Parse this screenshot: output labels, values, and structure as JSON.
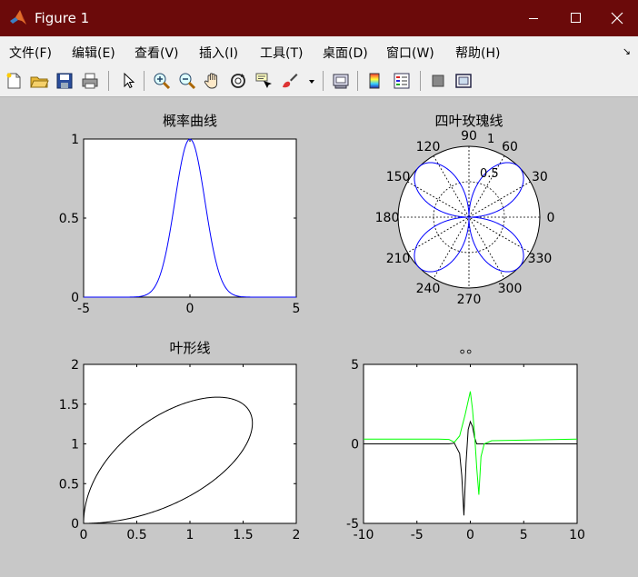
{
  "window": {
    "title": "Figure 1"
  },
  "menu": {
    "items": [
      "文件(F)",
      "编辑(E)",
      "查看(V)",
      "插入(I)",
      "工具(T)",
      "桌面(D)",
      "窗口(W)",
      "帮助(H)"
    ]
  },
  "toolbar": {
    "icons": [
      "new-file-icon",
      "open-folder-icon",
      "save-icon",
      "print-icon",
      "pointer-icon",
      "zoom-in-icon",
      "zoom-out-icon",
      "pan-hand-icon",
      "rotate-3d-icon",
      "data-cursor-icon",
      "brush-icon",
      "brush-dropdown-icon",
      "link-plot-icon",
      "colorbar-icon",
      "legend-icon",
      "hide-plot-tools-icon",
      "show-plot-tools-icon"
    ]
  },
  "chart_data": [
    {
      "type": "line",
      "title": "概率曲线",
      "xlim": [
        -5,
        5
      ],
      "ylim": [
        0,
        1
      ],
      "xticks": [
        "-5",
        "0",
        "5"
      ],
      "yticks": [
        "0",
        "0.5",
        "1"
      ],
      "series": [
        {
          "color": "#0000ff",
          "function": "exp(-x^2)",
          "x": [
            -5,
            -2,
            -1.5,
            -1,
            -0.5,
            0,
            0.5,
            1,
            1.5,
            2,
            5
          ],
          "y": [
            0,
            0.02,
            0.11,
            0.37,
            0.78,
            1.0,
            0.78,
            0.37,
            0.11,
            0.02,
            0
          ]
        }
      ]
    },
    {
      "type": "polar",
      "title": "四叶玫瑰线",
      "rlim": [
        0,
        1
      ],
      "rticks": [
        "0.5",
        "1"
      ],
      "angle_ticks": [
        "0",
        "30",
        "60",
        "90",
        "120",
        "150",
        "180",
        "210",
        "240",
        "270",
        "300",
        "330"
      ],
      "series": [
        {
          "color": "#0000ff",
          "function": "r = |sin(2θ)|"
        }
      ]
    },
    {
      "type": "line",
      "title": "叶形线",
      "xlim": [
        0,
        2
      ],
      "ylim": [
        0,
        2
      ],
      "xticks": [
        "0",
        "0.5",
        "1",
        "1.5",
        "2"
      ],
      "yticks": [
        "0",
        "0.5",
        "1",
        "1.5",
        "2"
      ],
      "series": [
        {
          "color": "#000000",
          "function": "folium: x = 3t/(1+t^3), y = 3t^2/(1+t^3)",
          "x": [
            0,
            0.59,
            1.21,
            1.5,
            1.26,
            0.75,
            0.37,
            0
          ],
          "y": [
            0,
            0.18,
            0.73,
            1.5,
            1.59,
            1.52,
            1.11,
            0
          ]
        }
      ]
    },
    {
      "type": "line",
      "title": "。。",
      "xlim": [
        -10,
        10
      ],
      "ylim": [
        -5,
        5
      ],
      "xticks": [
        "-10",
        "-5",
        "0",
        "5",
        "10"
      ],
      "yticks": [
        "-5",
        "0",
        "5"
      ],
      "series": [
        {
          "color": "#000000",
          "x": [
            -10,
            -2,
            -1.5,
            -1,
            -0.8,
            -0.6,
            -0.4,
            -0.2,
            0,
            0.2,
            0.4,
            0.6,
            0.8,
            1,
            2,
            10
          ],
          "y": [
            0,
            0,
            0.05,
            -0.6,
            -2.0,
            -4.5,
            -1.2,
            0.9,
            1.4,
            1.1,
            0.4,
            0.0,
            0,
            0,
            0,
            0
          ]
        },
        {
          "color": "#00ff00",
          "x": [
            -10,
            -3,
            -2,
            -1.5,
            -1,
            -0.5,
            0,
            0.2,
            0.4,
            0.6,
            0.8,
            1.0,
            1.3,
            2,
            10
          ],
          "y": [
            0.3,
            0.3,
            0.28,
            0.1,
            0.5,
            1.8,
            3.3,
            2.2,
            0.6,
            -1.5,
            -3.2,
            -0.8,
            0,
            0.2,
            0.3
          ]
        }
      ]
    }
  ]
}
